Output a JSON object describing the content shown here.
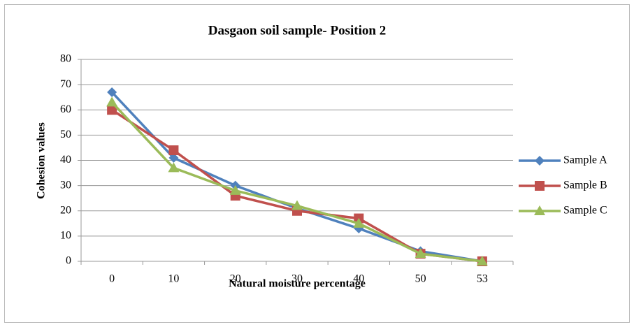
{
  "chart_data": {
    "type": "line",
    "title": "Dasgaon soil sample- Position 2",
    "x_label": "Natural  moisture percentage",
    "y_label": "Cohesion values",
    "categories": [
      "0",
      "10",
      "20",
      "30",
      "40",
      "50",
      "53"
    ],
    "series": [
      {
        "name": "Sample A",
        "color": "#4f81bd",
        "marker": "diamond",
        "values": [
          67,
          41,
          30,
          21,
          13,
          4,
          0
        ]
      },
      {
        "name": "Sample B",
        "color": "#c0504d",
        "marker": "square",
        "values": [
          60,
          44,
          26,
          20,
          17,
          3,
          0
        ]
      },
      {
        "name": "Sample C",
        "color": "#9bbb59",
        "marker": "triangle",
        "values": [
          63,
          37,
          28,
          22,
          15,
          3,
          0
        ]
      }
    ],
    "ylim": [
      0,
      80
    ],
    "yticks": [
      0,
      10,
      20,
      30,
      40,
      50,
      60,
      70,
      80
    ],
    "grid": true,
    "legend": "right"
  }
}
